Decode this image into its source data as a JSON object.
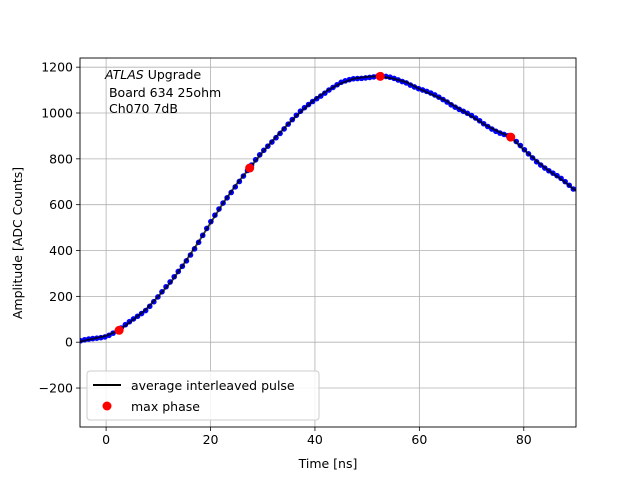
{
  "chart_data": {
    "type": "scatter",
    "xlabel": "Time [ns]",
    "ylabel": "Amplitude [ADC Counts]",
    "xlim": [
      -5,
      90
    ],
    "ylim": [
      -370,
      1240
    ],
    "xticks": [
      0,
      20,
      40,
      60,
      80
    ],
    "yticks": [
      -200,
      0,
      200,
      400,
      600,
      800,
      1000,
      1200
    ],
    "grid": true,
    "legend_position": "lower-left",
    "annotation": {
      "line1_italic": "ATLAS",
      "line1_rest": " Upgrade",
      "line2": " Board 634 25ohm",
      "line3": " Ch070 7dB"
    },
    "series": [
      {
        "name": "average interleaved pulse",
        "kind": "line",
        "color": "#000000",
        "x": [
          -5,
          -2,
          0,
          2.5,
          5,
          7.5,
          10,
          12.5,
          15,
          17.5,
          20,
          22.5,
          25,
          27.5,
          30,
          32.5,
          35,
          37.5,
          40,
          42.5,
          45,
          47.5,
          50,
          52.5,
          55,
          57.5,
          60,
          62.5,
          65,
          67.5,
          70,
          72.5,
          75,
          77.5,
          80,
          82.5,
          85,
          87.5,
          90
        ],
        "y": [
          2,
          18,
          28,
          52,
          95,
          140,
          200,
          265,
          345,
          430,
          520,
          610,
          690,
          760,
          830,
          895,
          955,
          1010,
          1060,
          1100,
          1130,
          1150,
          1158,
          1160,
          1150,
          1135,
          1105,
          1080,
          1055,
          1020,
          985,
          950,
          920,
          895,
          840,
          790,
          745,
          705,
          660
        ]
      },
      {
        "name": "",
        "kind": "samples",
        "color": "#0000ff"
      },
      {
        "name": "max phase",
        "kind": "points",
        "color": "#ff0000",
        "x": [
          2.5,
          27.5,
          52.5,
          77.5
        ],
        "y": [
          52,
          760,
          1160,
          895
        ]
      }
    ]
  }
}
